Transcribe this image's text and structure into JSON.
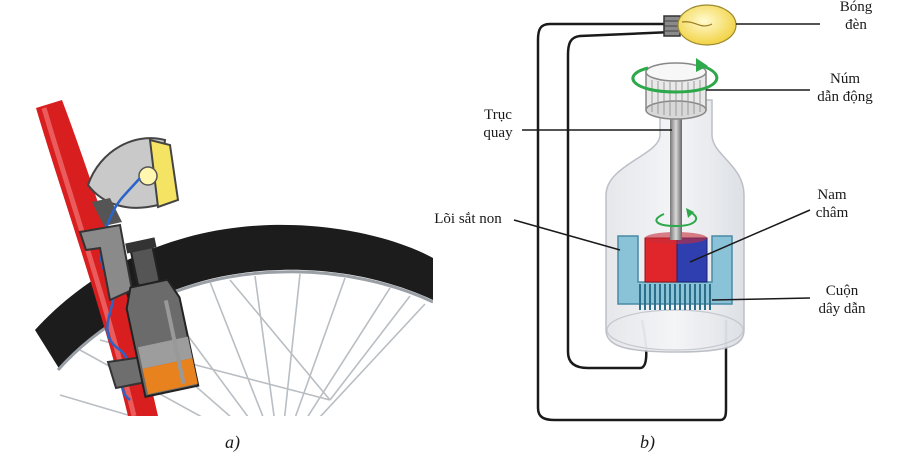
{
  "figure_a": {
    "caption": "a)",
    "colors": {
      "frame": "#d81e1e",
      "tire": "#1b1b1b",
      "dynamo_body": "#6b6b6b",
      "dynamo_band": "#e8821e",
      "lamp_glass": "#f5e463",
      "wire": "#2a64c8"
    }
  },
  "figure_b": {
    "caption": "b)",
    "labels": {
      "bulb_line1": "Bóng",
      "bulb_line2": "đèn",
      "knob_line1": "Núm",
      "knob_line2": "dẫn động",
      "shaft_line1": "Trục",
      "shaft_line2": "quay",
      "magnet_line1": "Nam",
      "magnet_line2": "châm",
      "core": "Lõi sắt non",
      "coil_line1": "Cuộn",
      "coil_line2": "dây dẫn"
    },
    "colors": {
      "magnet_north": "#e0262b",
      "magnet_south": "#2f3fb0",
      "core": "#8ac3d8",
      "coil": "#2b6f8a",
      "rotation_arrow": "#2da84a",
      "bulb": "#f7e06a"
    }
  }
}
